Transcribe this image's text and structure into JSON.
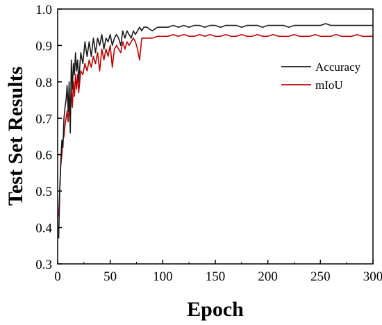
{
  "chart_data": {
    "type": "line",
    "title": "",
    "xlabel": "Epoch",
    "ylabel": "Test Set Results",
    "xlim": [
      0,
      300
    ],
    "ylim": [
      0.3,
      1.0
    ],
    "xticks": [
      "0",
      "50",
      "100",
      "150",
      "200",
      "250",
      "300"
    ],
    "yticks": [
      "0.3",
      "0.4",
      "0.5",
      "0.6",
      "0.7",
      "0.8",
      "0.9",
      "1.0"
    ],
    "grid": false,
    "legend_position": "right",
    "series": [
      {
        "name": "Accuracy",
        "color": "#1a1a1a",
        "x": [
          1,
          2,
          3,
          4,
          5,
          6,
          7,
          8,
          9,
          10,
          11,
          12,
          13,
          14,
          15,
          16,
          17,
          18,
          19,
          20,
          22,
          24,
          26,
          28,
          30,
          32,
          34,
          36,
          38,
          40,
          42,
          44,
          46,
          48,
          50,
          52,
          54,
          56,
          58,
          60,
          62,
          64,
          66,
          68,
          70,
          72,
          74,
          76,
          78,
          80,
          82,
          85,
          90,
          95,
          100,
          105,
          110,
          115,
          120,
          125,
          130,
          135,
          140,
          145,
          150,
          155,
          160,
          165,
          170,
          175,
          180,
          185,
          190,
          195,
          200,
          205,
          210,
          215,
          220,
          225,
          230,
          235,
          240,
          245,
          250,
          255,
          260,
          265,
          270,
          275,
          280,
          285,
          290,
          295,
          300
        ],
        "y": [
          0.37,
          0.5,
          0.58,
          0.64,
          0.62,
          0.7,
          0.73,
          0.75,
          0.79,
          0.72,
          0.8,
          0.66,
          0.86,
          0.78,
          0.85,
          0.82,
          0.88,
          0.83,
          0.86,
          0.8,
          0.88,
          0.85,
          0.91,
          0.87,
          0.91,
          0.87,
          0.92,
          0.88,
          0.92,
          0.9,
          0.93,
          0.89,
          0.92,
          0.91,
          0.93,
          0.9,
          0.92,
          0.93,
          0.92,
          0.9,
          0.94,
          0.92,
          0.94,
          0.93,
          0.92,
          0.94,
          0.93,
          0.94,
          0.95,
          0.94,
          0.95,
          0.95,
          0.94,
          0.95,
          0.95,
          0.95,
          0.955,
          0.95,
          0.955,
          0.95,
          0.955,
          0.955,
          0.95,
          0.955,
          0.955,
          0.95,
          0.955,
          0.955,
          0.955,
          0.95,
          0.955,
          0.955,
          0.955,
          0.95,
          0.955,
          0.955,
          0.955,
          0.955,
          0.95,
          0.955,
          0.955,
          0.955,
          0.955,
          0.955,
          0.955,
          0.96,
          0.955,
          0.955,
          0.955,
          0.955,
          0.955,
          0.955,
          0.955,
          0.955,
          0.955
        ]
      },
      {
        "name": "mIoU",
        "color": "#c00000",
        "x": [
          1,
          2,
          3,
          4,
          5,
          6,
          7,
          8,
          9,
          10,
          11,
          12,
          13,
          14,
          15,
          16,
          17,
          18,
          19,
          20,
          22,
          24,
          26,
          28,
          30,
          32,
          34,
          36,
          38,
          40,
          42,
          44,
          46,
          48,
          50,
          52,
          54,
          56,
          58,
          60,
          62,
          64,
          66,
          68,
          70,
          72,
          74,
          76,
          78,
          80,
          82,
          85,
          90,
          95,
          100,
          105,
          110,
          115,
          120,
          125,
          130,
          135,
          140,
          145,
          150,
          155,
          160,
          165,
          170,
          175,
          180,
          185,
          190,
          195,
          200,
          205,
          210,
          215,
          220,
          225,
          230,
          235,
          240,
          245,
          250,
          255,
          260,
          265,
          270,
          275,
          280,
          285,
          290,
          295,
          300
        ],
        "y": [
          0.43,
          0.5,
          0.57,
          0.6,
          0.64,
          0.65,
          0.68,
          0.7,
          0.72,
          0.69,
          0.74,
          0.7,
          0.78,
          0.73,
          0.8,
          0.76,
          0.82,
          0.78,
          0.82,
          0.77,
          0.83,
          0.82,
          0.85,
          0.83,
          0.86,
          0.84,
          0.87,
          0.85,
          0.88,
          0.83,
          0.89,
          0.86,
          0.89,
          0.87,
          0.9,
          0.84,
          0.89,
          0.9,
          0.89,
          0.88,
          0.91,
          0.89,
          0.91,
          0.9,
          0.91,
          0.92,
          0.91,
          0.89,
          0.86,
          0.92,
          0.92,
          0.92,
          0.92,
          0.925,
          0.925,
          0.925,
          0.93,
          0.925,
          0.93,
          0.925,
          0.925,
          0.93,
          0.925,
          0.93,
          0.925,
          0.925,
          0.93,
          0.925,
          0.925,
          0.93,
          0.925,
          0.925,
          0.93,
          0.925,
          0.925,
          0.93,
          0.925,
          0.925,
          0.925,
          0.93,
          0.925,
          0.925,
          0.925,
          0.93,
          0.925,
          0.925,
          0.925,
          0.93,
          0.925,
          0.925,
          0.925,
          0.93,
          0.925,
          0.925,
          0.925
        ]
      }
    ]
  }
}
